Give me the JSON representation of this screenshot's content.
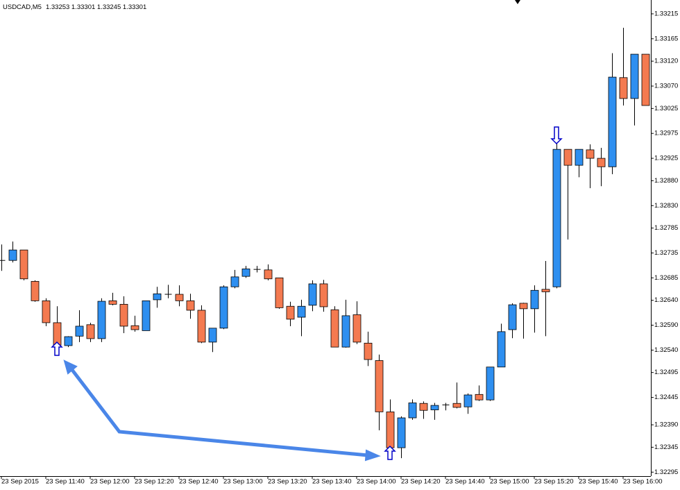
{
  "chart_data": {
    "type": "candlestick",
    "title": "USDCAD,M5",
    "subtitle": "1.33253 1.33301 1.33245 1.33301",
    "categories": [
      "23 Sep 2015",
      null,
      null,
      null,
      "23 Sep 11:40",
      null,
      null,
      null,
      "23 Sep 12:00",
      null,
      null,
      null,
      "23 Sep 12:20",
      null,
      null,
      null,
      "23 Sep 12:40",
      null,
      null,
      null,
      "23 Sep 13:00",
      null,
      null,
      null,
      "23 Sep 13:20",
      null,
      null,
      null,
      "23 Sep 13:40",
      null,
      null,
      null,
      "23 Sep 14:00",
      null,
      null,
      null,
      "23 Sep 14:20",
      null,
      null,
      null,
      "23 Sep 14:40",
      null,
      null,
      null,
      "23 Sep 15:00",
      null,
      null,
      null,
      "23 Sep 15:20",
      null,
      null,
      null,
      "23 Sep 15:40",
      null,
      null,
      null,
      "23 Sep 16:00",
      null,
      null
    ],
    "open": [
      1.3272,
      1.3272,
      1.32741,
      1.32678,
      1.32639,
      1.32595,
      1.32549,
      1.32568,
      1.32591,
      1.32563,
      1.32639,
      1.32632,
      1.32589,
      1.32579,
      1.32641,
      1.32652,
      1.32652,
      1.32639,
      1.3262,
      1.32556,
      1.32584,
      1.32667,
      1.32688,
      1.32702,
      1.32701,
      1.32685,
      1.32628,
      1.32606,
      1.3263,
      1.32673,
      1.32621,
      1.32546,
      1.32611,
      1.32554,
      1.32519,
      1.32416,
      1.32344,
      1.32404,
      1.32433,
      1.3242,
      1.3243,
      1.32433,
      1.32426,
      1.32451,
      1.3244,
      1.32506,
      1.32581,
      1.32634,
      1.32623,
      1.32662,
      1.32667,
      1.32943,
      1.32911,
      1.32942,
      1.32925,
      1.32908,
      1.33087,
      1.33045,
      1.33134
    ],
    "high": [
      1.32752,
      1.32758,
      1.32741,
      1.3268,
      1.32644,
      1.32628,
      1.32568,
      1.3262,
      1.32595,
      1.32644,
      1.32655,
      1.32648,
      1.32609,
      1.32639,
      1.32667,
      1.32671,
      1.3267,
      1.32653,
      1.3263,
      1.32584,
      1.3267,
      1.32701,
      1.32709,
      1.32709,
      1.32712,
      1.32685,
      1.32637,
      1.32641,
      1.3268,
      1.32681,
      1.32628,
      1.32641,
      1.32638,
      1.32577,
      1.32531,
      1.32441,
      1.32407,
      1.32441,
      1.32437,
      1.32434,
      1.32434,
      1.32475,
      1.32453,
      1.32469,
      1.32506,
      1.32593,
      1.32634,
      1.32635,
      1.3267,
      1.32719,
      1.32957,
      1.32943,
      1.32943,
      1.32953,
      1.32946,
      1.33136,
      1.33187,
      1.33134,
      1.33134
    ],
    "low": [
      1.32699,
      1.32716,
      1.3268,
      1.32637,
      1.32588,
      1.32546,
      1.32546,
      1.32556,
      1.32556,
      1.32556,
      1.3263,
      1.32574,
      1.32577,
      1.32579,
      1.32625,
      1.32644,
      1.32628,
      1.32603,
      1.32554,
      1.32536,
      1.32582,
      1.32664,
      1.32685,
      1.32696,
      1.3268,
      1.32623,
      1.32588,
      1.32568,
      1.32618,
      1.32617,
      1.32546,
      1.32545,
      1.32552,
      1.32508,
      1.32379,
      1.3234,
      1.32323,
      1.324,
      1.32402,
      1.324,
      1.32419,
      1.32423,
      1.32412,
      1.32438,
      1.32438,
      1.32506,
      1.32564,
      1.32563,
      1.32575,
      1.32568,
      1.32664,
      1.32762,
      1.32887,
      1.32865,
      1.32869,
      1.32893,
      1.33031,
      1.32991,
      1.33031
    ],
    "close": [
      1.3272,
      1.32741,
      1.32683,
      1.32639,
      1.32595,
      1.3255,
      1.32567,
      1.32588,
      1.32563,
      1.32638,
      1.32632,
      1.32588,
      1.32581,
      1.32639,
      1.32653,
      1.32652,
      1.32639,
      1.3262,
      1.32556,
      1.32584,
      1.32667,
      1.32687,
      1.32703,
      1.32702,
      1.32683,
      1.32625,
      1.32602,
      1.32628,
      1.32673,
      1.32627,
      1.32546,
      1.32609,
      1.32556,
      1.32521,
      1.32416,
      1.32344,
      1.32404,
      1.32434,
      1.32419,
      1.32429,
      1.3243,
      1.32425,
      1.3245,
      1.3244,
      1.32506,
      1.32577,
      1.32631,
      1.32623,
      1.3266,
      1.32657,
      1.32943,
      1.32911,
      1.32943,
      1.32925,
      1.32908,
      1.33088,
      1.33045,
      1.33134,
      1.33031
    ],
    "up_color": "#2e8ff0",
    "down_color": "#f47a50",
    "wick_color": "#000000",
    "ylim": [
      1.32287,
      1.3324
    ],
    "yticks": [
      1.33215,
      1.33165,
      {
        "value": 1.3312,
        "label": "1.33120"
      },
      {
        "value": 1.3307,
        "label": "1.33070"
      },
      1.33025,
      1.32975,
      1.32925,
      {
        "value": 1.3288,
        "label": "1.32880"
      },
      {
        "value": 1.3283,
        "label": "1.32830"
      },
      1.32785,
      1.32735,
      1.32685,
      {
        "value": 1.3264,
        "label": "1.32640"
      },
      {
        "value": 1.3259,
        "label": "1.32590"
      },
      {
        "value": 1.3254,
        "label": "1.32540"
      },
      1.32495,
      1.32445,
      {
        "value": 1.3239,
        "label": "1.32390"
      },
      1.32345,
      1.32295
    ],
    "grid": false
  }
}
